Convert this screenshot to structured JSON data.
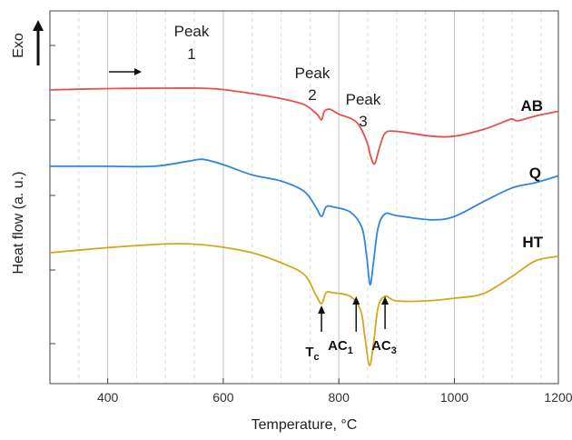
{
  "chart_data": {
    "type": "line",
    "xlabel": "Temperature, °C",
    "ylabel": "Heat flow (a. u.)",
    "exo_label": "Exo",
    "xlim": [
      300,
      1180
    ],
    "x_ticks": [
      400,
      600,
      800,
      1000,
      1200
    ],
    "grid": "vertical dashed",
    "series": [
      {
        "name": "AB",
        "color": "#e8504a",
        "points": [
          [
            300,
            0.33
          ],
          [
            400,
            0.26
          ],
          [
            500,
            0.24
          ],
          [
            560,
            0.24
          ],
          [
            600,
            0.31
          ],
          [
            650,
            0.52
          ],
          [
            700,
            0.78
          ],
          [
            740,
            1.1
          ],
          [
            762,
            1.6
          ],
          [
            770,
            1.9
          ],
          [
            775,
            1.45
          ],
          [
            785,
            1.35
          ],
          [
            800,
            1.6
          ],
          [
            830,
            2.0
          ],
          [
            848,
            3.0
          ],
          [
            855,
            3.8
          ],
          [
            862,
            4.2
          ],
          [
            870,
            3.4
          ],
          [
            880,
            2.6
          ],
          [
            900,
            2.5
          ],
          [
            960,
            2.75
          ],
          [
            1000,
            2.75
          ],
          [
            1050,
            2.4
          ],
          [
            1090,
            1.95
          ],
          [
            1100,
            1.85
          ],
          [
            1110,
            1.95
          ],
          [
            1140,
            1.7
          ],
          [
            1180,
            1.45
          ]
        ]
      },
      {
        "name": "Q",
        "color": "#2f86e0",
        "points": [
          [
            300,
            0.05
          ],
          [
            400,
            0.05
          ],
          [
            480,
            0.05
          ],
          [
            540,
            -0.25
          ],
          [
            565,
            -0.35
          ],
          [
            600,
            -0.05
          ],
          [
            650,
            0.55
          ],
          [
            700,
            0.9
          ],
          [
            740,
            1.5
          ],
          [
            760,
            2.4
          ],
          [
            770,
            2.95
          ],
          [
            778,
            2.4
          ],
          [
            790,
            2.4
          ],
          [
            820,
            2.7
          ],
          [
            840,
            3.6
          ],
          [
            848,
            5.2
          ],
          [
            854,
            6.9
          ],
          [
            860,
            5.6
          ],
          [
            868,
            3.6
          ],
          [
            880,
            2.8
          ],
          [
            900,
            2.9
          ],
          [
            960,
            3.15
          ],
          [
            1000,
            2.95
          ],
          [
            1050,
            2.1
          ],
          [
            1100,
            1.3
          ],
          [
            1140,
            1.0
          ],
          [
            1180,
            0.6
          ]
        ]
      },
      {
        "name": "HT",
        "color": "#d4a81c",
        "points": [
          [
            300,
            0.4
          ],
          [
            400,
            0.12
          ],
          [
            480,
            -0.05
          ],
          [
            520,
            -0.1
          ],
          [
            560,
            -0.05
          ],
          [
            600,
            0.1
          ],
          [
            650,
            0.4
          ],
          [
            700,
            0.95
          ],
          [
            740,
            1.6
          ],
          [
            760,
            2.7
          ],
          [
            770,
            3.2
          ],
          [
            778,
            2.6
          ],
          [
            790,
            2.6
          ],
          [
            820,
            2.8
          ],
          [
            838,
            3.6
          ],
          [
            845,
            5.0
          ],
          [
            853,
            6.6
          ],
          [
            860,
            5.4
          ],
          [
            868,
            3.4
          ],
          [
            880,
            2.8
          ],
          [
            900,
            3.05
          ],
          [
            950,
            3.05
          ],
          [
            1000,
            2.9
          ],
          [
            1050,
            2.65
          ],
          [
            1100,
            1.7
          ],
          [
            1140,
            0.85
          ],
          [
            1180,
            0.6
          ]
        ]
      }
    ],
    "annotations": {
      "peaks": [
        {
          "line1": "Peak",
          "line2": "1"
        },
        {
          "line1": "Peak",
          "line2": "2"
        },
        {
          "line1": "Peak",
          "line2": "3"
        }
      ],
      "markers": [
        {
          "main": "T",
          "sub": "c",
          "x": 770
        },
        {
          "main": "AC",
          "sub": "1",
          "x": 830
        },
        {
          "main": "AC",
          "sub": "3",
          "x": 880
        }
      ]
    }
  }
}
